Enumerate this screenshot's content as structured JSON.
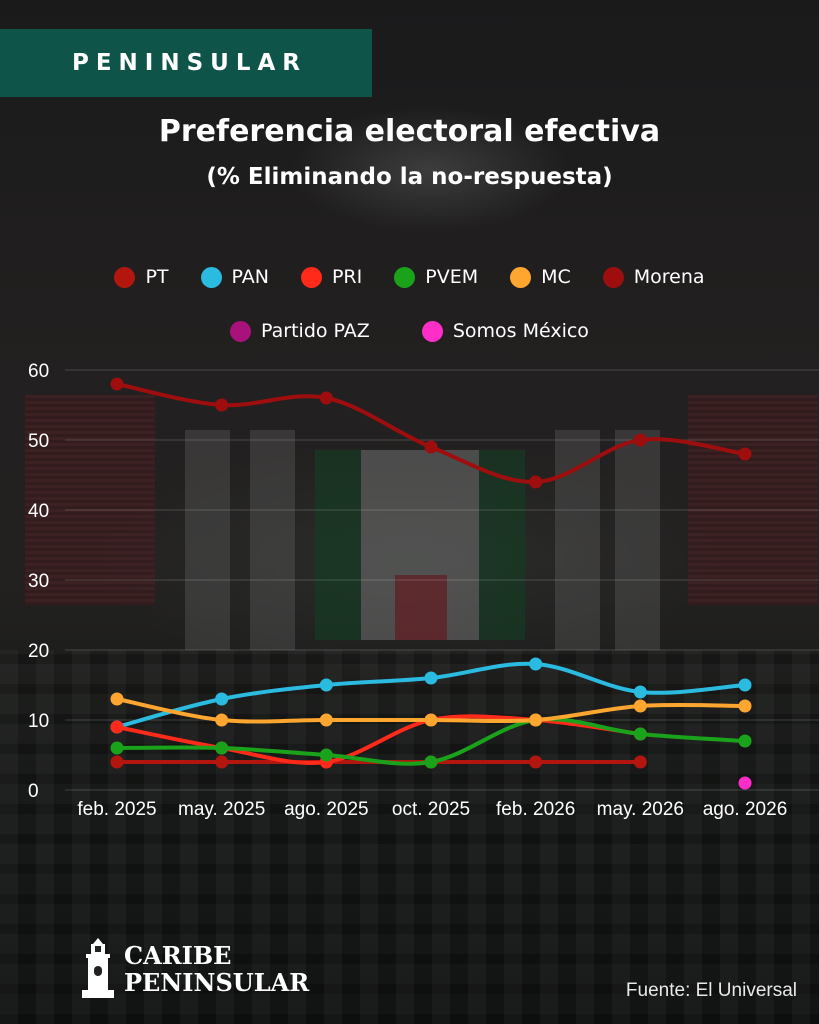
{
  "brand": {
    "tag": "PENINSULAR"
  },
  "footer": {
    "logo_line1": "CARIBE",
    "logo_line2": "PENINSULAR",
    "source": "Fuente: El Universal"
  },
  "chart_data": {
    "type": "line",
    "title": "Preferencia electoral efectiva",
    "subtitle": "(% Eliminando la no-respuesta)",
    "xlabel": "",
    "ylabel": "",
    "x": [
      "feb. 2025",
      "may. 2025",
      "ago. 2025",
      "oct. 2025",
      "feb. 2026",
      "may. 2026",
      "ago. 2026"
    ],
    "ylim": [
      0,
      60
    ],
    "yticks": [
      0,
      10,
      20,
      30,
      40,
      50,
      60
    ],
    "grid": true,
    "legend_placement": "top",
    "series": [
      {
        "name": "PT",
        "color": "#b3160f",
        "values": [
          4,
          4,
          4,
          4,
          4,
          4,
          null
        ]
      },
      {
        "name": "PAN",
        "color": "#2bbbe0",
        "values": [
          9,
          13,
          15,
          16,
          18,
          14,
          15
        ]
      },
      {
        "name": "PRI",
        "color": "#ff2a1a",
        "values": [
          9,
          6,
          4,
          10,
          10,
          8,
          null
        ]
      },
      {
        "name": "PVEM",
        "color": "#1aa31a",
        "values": [
          6,
          6,
          5,
          4,
          10,
          8,
          7
        ]
      },
      {
        "name": "MC",
        "color": "#ffa630",
        "values": [
          13,
          10,
          10,
          10,
          10,
          12,
          12
        ]
      },
      {
        "name": "Morena",
        "color": "#9e0e0e",
        "values": [
          58,
          55,
          56,
          49,
          44,
          50,
          48
        ]
      },
      {
        "name": "Partido PAZ",
        "color": "#a8127a",
        "values": [
          null,
          null,
          null,
          null,
          null,
          null,
          null
        ]
      },
      {
        "name": "Somos México",
        "color": "#ff2ec8",
        "values": [
          null,
          null,
          null,
          null,
          null,
          null,
          1
        ]
      }
    ]
  }
}
